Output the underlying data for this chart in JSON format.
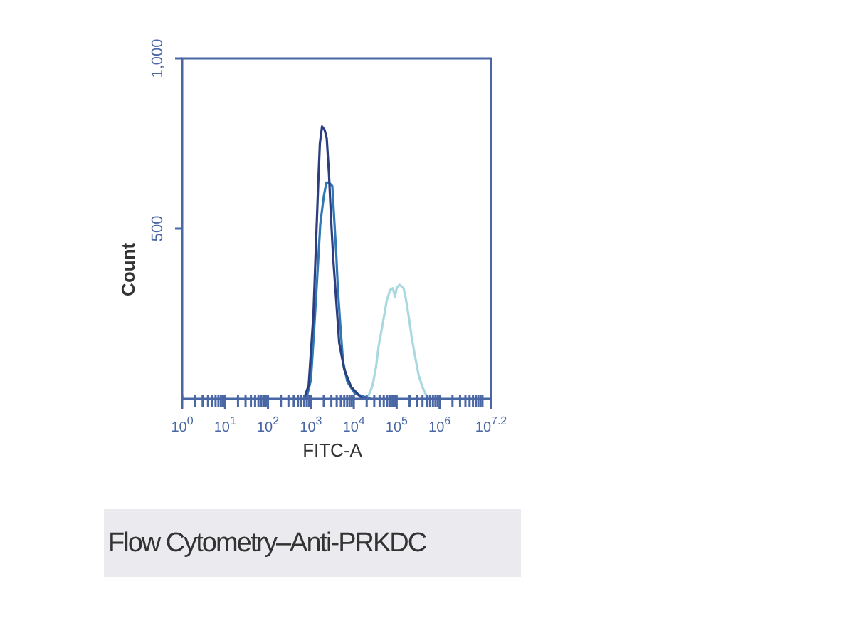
{
  "chart_data": {
    "type": "line",
    "title": "Flow Cytometry–Anti-PRKDC",
    "xlabel": "FITC-A",
    "ylabel": "Count",
    "log": "x",
    "marker": "none",
    "xlim": [
      1,
      15848932
    ],
    "ylim": [
      0,
      1000
    ],
    "xticks": [
      {
        "value": 1,
        "label": "10$^{0}$"
      },
      {
        "value": 2,
        "label": null
      },
      {
        "value": 3,
        "label": null
      },
      {
        "value": 4,
        "label": null
      },
      {
        "value": 5,
        "label": null
      },
      {
        "value": 6,
        "label": null
      },
      {
        "value": 7,
        "label": null
      },
      {
        "value": 8,
        "label": null
      },
      {
        "value": 9,
        "label": null
      },
      {
        "value": 10,
        "label": "10$^{1}$"
      },
      {
        "value": 20,
        "label": null
      },
      {
        "value": 30,
        "label": null
      },
      {
        "value": 40,
        "label": null
      },
      {
        "value": 50,
        "label": null
      },
      {
        "value": 60,
        "label": null
      },
      {
        "value": 70,
        "label": null
      },
      {
        "value": 80,
        "label": null
      },
      {
        "value": 90,
        "label": null
      },
      {
        "value": 100,
        "label": "10$^{2}$"
      },
      {
        "value": 200,
        "label": null
      },
      {
        "value": 300,
        "label": null
      },
      {
        "value": 400,
        "label": null
      },
      {
        "value": 500,
        "label": null
      },
      {
        "value": 600,
        "label": null
      },
      {
        "value": 700,
        "label": null
      },
      {
        "value": 800,
        "label": null
      },
      {
        "value": 900,
        "label": null
      },
      {
        "value": 1000,
        "label": "10$^{3}$"
      },
      {
        "value": 2000,
        "label": null
      },
      {
        "value": 3000,
        "label": null
      },
      {
        "value": 4000,
        "label": null
      },
      {
        "value": 5000,
        "label": null
      },
      {
        "value": 6000,
        "label": null
      },
      {
        "value": 7000,
        "label": null
      },
      {
        "value": 8000,
        "label": null
      },
      {
        "value": 9000,
        "label": null
      },
      {
        "value": 10000,
        "label": "10$^{4}$"
      },
      {
        "value": 20000,
        "label": null
      },
      {
        "value": 30000,
        "label": null
      },
      {
        "value": 40000,
        "label": null
      },
      {
        "value": 50000,
        "label": null
      },
      {
        "value": 60000,
        "label": null
      },
      {
        "value": 70000,
        "label": null
      },
      {
        "value": 80000,
        "label": null
      },
      {
        "value": 90000,
        "label": null
      },
      {
        "value": 100000,
        "label": "10$^{5}$"
      },
      {
        "value": 200000,
        "label": null
      },
      {
        "value": 300000,
        "label": null
      },
      {
        "value": 400000,
        "label": null
      },
      {
        "value": 500000,
        "label": null
      },
      {
        "value": 600000,
        "label": null
      },
      {
        "value": 700000,
        "label": null
      },
      {
        "value": 800000,
        "label": null
      },
      {
        "value": 900000,
        "label": null
      },
      {
        "value": 1000000,
        "label": "10$^{6}$"
      },
      {
        "value": 2000000,
        "label": null
      },
      {
        "value": 3000000,
        "label": null
      },
      {
        "value": 4000000,
        "label": null
      },
      {
        "value": 5000000,
        "label": null
      },
      {
        "value": 6000000,
        "label": null
      },
      {
        "value": 7000000,
        "label": null
      },
      {
        "value": 8000000,
        "label": null
      },
      {
        "value": 9000000,
        "label": null
      },
      {
        "value": 10000000,
        "label": null
      },
      {
        "value": 15848932,
        "label": "10$^{7.2}$"
      }
    ],
    "yticks": [
      500,
      {
        "value": 1000,
        "label": "1,000"
      }
    ],
    "series": [
      {
        "color": "#2c3e7e",
        "x": [
          690,
          890,
          1150,
          1320,
          1480,
          1620,
          1820,
          2090,
          2340,
          2630,
          2950,
          3310,
          3890,
          4570,
          6030,
          8710,
          14500,
          20000
        ],
        "values": [
          0,
          40,
          250,
          460,
          630,
          750,
          800,
          790,
          765,
          665,
          530,
          415,
          290,
          165,
          85,
          35,
          5,
          0
        ]
      },
      {
        "color": "#2f77b6",
        "x": [
          780,
          1000,
          1200,
          1410,
          1660,
          2000,
          2290,
          2630,
          3160,
          3550,
          3890,
          4270,
          4900,
          5620,
          7080,
          10700,
          18600,
          25100
        ],
        "values": [
          0,
          55,
          210,
          360,
          515,
          595,
          635,
          635,
          625,
          515,
          430,
          320,
          210,
          110,
          50,
          15,
          5,
          0
        ]
      },
      {
        "color": "#a9d9df",
        "x": [
          15800,
          21400,
          27500,
          33100,
          38000,
          45700,
          58900,
          70800,
          81300,
          91200,
          100000,
          117000,
          145000,
          166000,
          195000,
          224000,
          269000,
          324000,
          398000,
          490000,
          589000
        ],
        "values": [
          0,
          5,
          40,
          95,
          155,
          210,
          290,
          320,
          325,
          300,
          325,
          335,
          325,
          290,
          235,
          180,
          125,
          70,
          35,
          10,
          0
        ]
      }
    ]
  }
}
